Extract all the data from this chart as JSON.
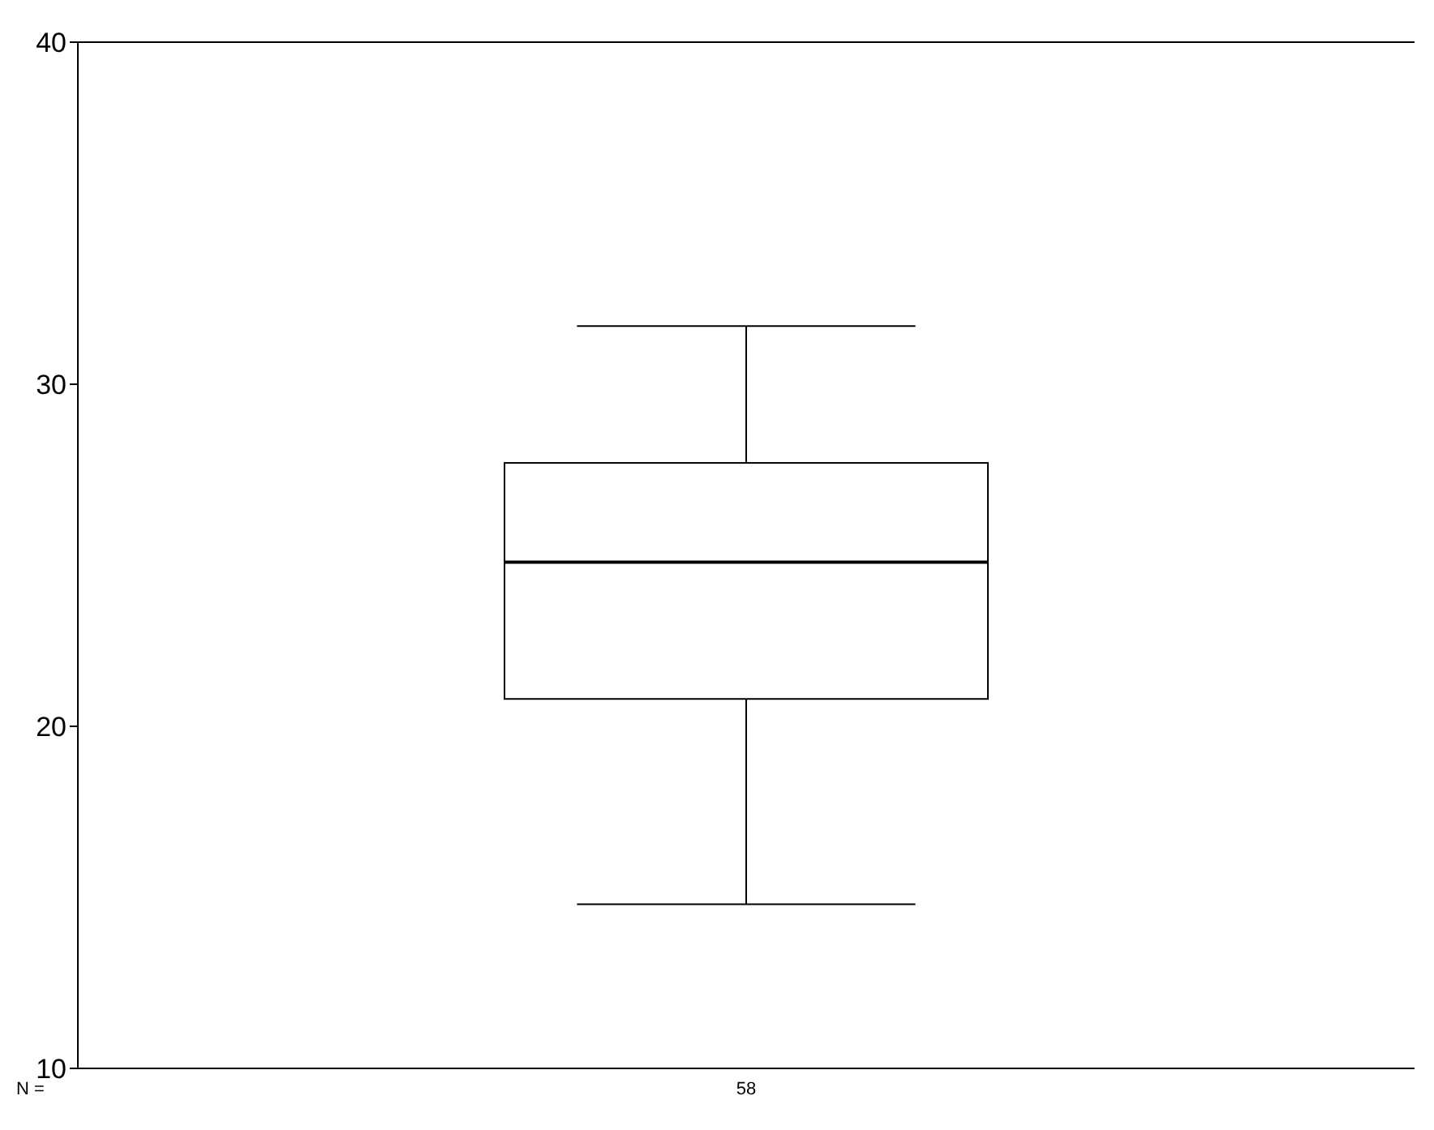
{
  "chart_data": {
    "type": "box",
    "categories": [
      "58"
    ],
    "boxes": [
      {
        "low": 14.8,
        "q1": 20.8,
        "median": 24.8,
        "q3": 27.7,
        "high": 31.7
      }
    ],
    "ylim": [
      10,
      40
    ],
    "yticks": [
      10,
      20,
      30,
      40
    ],
    "grid": false,
    "annotations": [
      "N ="
    ]
  }
}
